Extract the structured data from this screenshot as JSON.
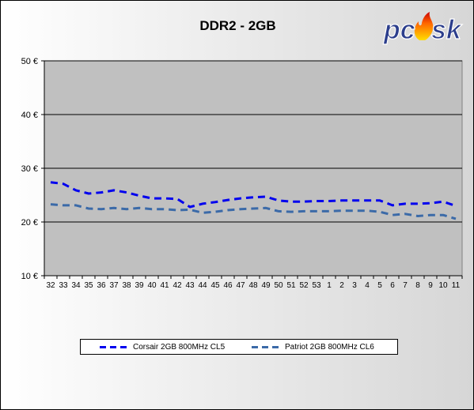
{
  "chart_data": {
    "type": "line",
    "title": "DDR2 - 2GB",
    "xlabel": "",
    "ylabel": "",
    "ylim": [
      10,
      50
    ],
    "yticks": [
      "10 €",
      "20 €",
      "30 €",
      "40 €",
      "50 €"
    ],
    "ytick_values": [
      10,
      20,
      30,
      40,
      50
    ],
    "grid": true,
    "legend_position": "bottom",
    "categories": [
      "32",
      "33",
      "34",
      "35",
      "36",
      "37",
      "38",
      "39",
      "40",
      "41",
      "42",
      "43",
      "44",
      "45",
      "46",
      "47",
      "48",
      "49",
      "50",
      "51",
      "52",
      "53",
      "1",
      "2",
      "3",
      "4",
      "5",
      "6",
      "7",
      "8",
      "9",
      "10",
      "11"
    ],
    "series": [
      {
        "name": "Corsair 2GB 800MHz CL5",
        "color": "#0000ee",
        "values": [
          27.4,
          27.1,
          25.9,
          25.3,
          25.5,
          25.9,
          25.5,
          24.9,
          24.4,
          24.4,
          24.3,
          22.8,
          23.4,
          23.7,
          24.1,
          24.4,
          24.6,
          24.7,
          24.0,
          23.8,
          23.8,
          23.9,
          23.9,
          24.0,
          24.0,
          24.0,
          24.0,
          23.1,
          23.4,
          23.4,
          23.5,
          23.8,
          23.0
        ]
      },
      {
        "name": "Patriot 2GB 800MHz CL6",
        "color": "#3b6aa8",
        "values": [
          23.3,
          23.1,
          23.1,
          22.5,
          22.4,
          22.6,
          22.4,
          22.6,
          22.4,
          22.4,
          22.2,
          22.3,
          21.7,
          21.9,
          22.2,
          22.4,
          22.5,
          22.6,
          22.0,
          21.9,
          22.0,
          22.0,
          22.0,
          22.1,
          22.1,
          22.1,
          21.9,
          21.3,
          21.5,
          21.1,
          21.3,
          21.3,
          20.6
        ]
      }
    ]
  },
  "colors": {
    "plot_background": "#c0c0c0",
    "gridline": "#000000"
  },
  "logo": {
    "text": "pcsk",
    "icon": "flame-icon"
  }
}
